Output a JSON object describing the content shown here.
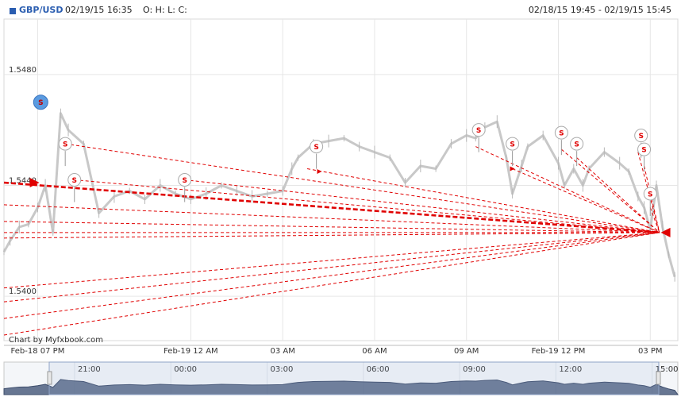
{
  "header": {
    "symbol": "GBP/USD",
    "time": "02/19/15 16:35",
    "ohlc": "O: H: L: C:",
    "range": "02/18/15 19:45 - 02/19/15 15:45"
  },
  "credit": "Chart by Myfxbook.com",
  "colors": {
    "candle": "#c8c8c8",
    "signal": "#e00000",
    "grid": "#e6e6e6",
    "nav_fill": "#4d5f80"
  },
  "chart_data": {
    "type": "line",
    "title": "GBP/USD",
    "ylim": [
      1.5384,
      1.55
    ],
    "y_ticks": [
      1.54,
      1.544,
      1.548
    ],
    "y_tick_labels": [
      "1.5400",
      "1.5440",
      "1.5480"
    ],
    "x_ticks": [
      0,
      5,
      8,
      11,
      14,
      17,
      20
    ],
    "x_tick_labels": [
      "Feb-18 07 PM",
      "Feb-19 12 AM",
      "03 AM",
      "06 AM",
      "09 AM",
      "Feb-19 12 PM",
      "03 PM"
    ],
    "xlim": [
      -1.1,
      20.9
    ],
    "price_series": {
      "x": [
        -1.1,
        -0.9,
        -0.6,
        -0.3,
        0.0,
        0.25,
        0.5,
        0.75,
        1.0,
        1.5,
        2.0,
        2.5,
        3.0,
        3.5,
        4.0,
        4.5,
        5.0,
        5.5,
        6.0,
        6.5,
        7.0,
        7.5,
        8.0,
        8.3,
        8.5,
        9.0,
        9.5,
        10.0,
        10.5,
        11.0,
        11.5,
        12.0,
        12.5,
        13.0,
        13.5,
        14.0,
        14.3,
        14.6,
        15.0,
        15.3,
        15.5,
        15.8,
        16.0,
        16.5,
        17.0,
        17.2,
        17.5,
        17.8,
        18.0,
        18.5,
        19.0,
        19.3,
        19.6,
        19.8,
        20.0,
        20.2,
        20.4,
        20.6,
        20.8
      ],
      "y": [
        1.5416,
        1.542,
        1.5425,
        1.5426,
        1.5432,
        1.544,
        1.5423,
        1.5466,
        1.546,
        1.5455,
        1.543,
        1.5436,
        1.5438,
        1.5435,
        1.544,
        1.5437,
        1.5435,
        1.5437,
        1.544,
        1.5438,
        1.5436,
        1.5437,
        1.5438,
        1.5446,
        1.545,
        1.5455,
        1.5456,
        1.5457,
        1.5454,
        1.5452,
        1.545,
        1.5441,
        1.5447,
        1.5446,
        1.5455,
        1.5458,
        1.5457,
        1.5461,
        1.5463,
        1.545,
        1.5437,
        1.5447,
        1.5454,
        1.5458,
        1.5448,
        1.544,
        1.5446,
        1.544,
        1.5446,
        1.5452,
        1.5448,
        1.5445,
        1.5436,
        1.5432,
        1.5424,
        1.544,
        1.5425,
        1.5415,
        1.5407
      ]
    },
    "sell_markers": {
      "label": "S",
      "points": [
        {
          "x": 0.1,
          "y": 1.547,
          "highlight": true
        },
        {
          "x": 0.9,
          "y": 1.5455
        },
        {
          "x": 1.2,
          "y": 1.5442
        },
        {
          "x": 4.8,
          "y": 1.5442
        },
        {
          "x": 9.1,
          "y": 1.5454
        },
        {
          "x": 14.4,
          "y": 1.546
        },
        {
          "x": 15.5,
          "y": 1.5455
        },
        {
          "x": 17.1,
          "y": 1.5459
        },
        {
          "x": 17.6,
          "y": 1.5455
        },
        {
          "x": 19.7,
          "y": 1.5458
        },
        {
          "x": 19.8,
          "y": 1.5453
        },
        {
          "x": 20.0,
          "y": 1.5437
        }
      ]
    },
    "entry_arrows": [
      {
        "x": -0.1,
        "y": 1.5441
      },
      {
        "x": 9.2,
        "y": 1.5445
      },
      {
        "x": 15.5,
        "y": 1.5446
      },
      {
        "x": 20.5,
        "y": 1.5423
      }
    ],
    "trade_lines": {
      "end": {
        "x": 20.3,
        "y": 1.5423
      },
      "starts": [
        {
          "x": -1.1,
          "y": 1.5441,
          "bold": true
        },
        {
          "x": -1.1,
          "y": 1.5433
        },
        {
          "x": -1.1,
          "y": 1.5427
        },
        {
          "x": -1.1,
          "y": 1.5423
        },
        {
          "x": -1.1,
          "y": 1.5421
        },
        {
          "x": -1.1,
          "y": 1.5403
        },
        {
          "x": -1.1,
          "y": 1.5398
        },
        {
          "x": -1.1,
          "y": 1.5392
        },
        {
          "x": -1.1,
          "y": 1.5386
        },
        {
          "x": 0.9,
          "y": 1.5455
        },
        {
          "x": 1.2,
          "y": 1.5442
        },
        {
          "x": 4.8,
          "y": 1.5442
        },
        {
          "x": 8.8,
          "y": 1.5446
        },
        {
          "x": 14.3,
          "y": 1.5454
        },
        {
          "x": 15.5,
          "y": 1.5446
        },
        {
          "x": 17.1,
          "y": 1.5453
        },
        {
          "x": 17.6,
          "y": 1.545
        },
        {
          "x": 19.6,
          "y": 1.5452
        },
        {
          "x": 19.8,
          "y": 1.5447
        },
        {
          "x": 20.0,
          "y": 1.5432
        }
      ]
    },
    "navigator": {
      "tick_labels": [
        "21:00",
        "00:00",
        "03:00",
        "06:00",
        "09:00",
        "12:00",
        "15:00"
      ],
      "tick_x": [
        0,
        3,
        6,
        9,
        12,
        15,
        18
      ]
    }
  }
}
